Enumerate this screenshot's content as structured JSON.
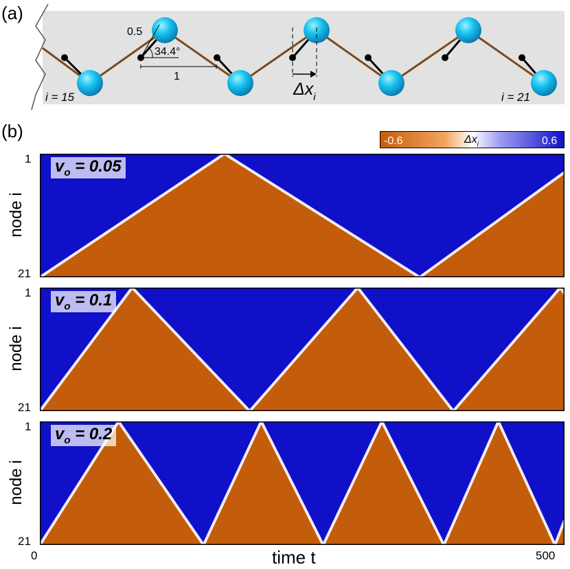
{
  "panel_a": {
    "label": "(a)",
    "dim_short": "0.5",
    "dim_angle": "34.4°",
    "dim_long": "1",
    "delta_main": "Δx",
    "delta_sub": "i",
    "i_left": "i = 15",
    "i_right": "i = 21"
  },
  "panel_b": {
    "label": "(b)",
    "colorbar": {
      "min_label": "-0.6",
      "mid_label": "Δx",
      "mid_sub": "i",
      "max_label": "0.6",
      "colors": [
        "#c45d0b",
        "#ffffff",
        "#1010c8"
      ]
    },
    "ylabel": "node i",
    "xlabel": "time t",
    "x_tick_left": "0",
    "x_tick_right": "500",
    "y_tick_top": "1",
    "y_tick_bottom": "21",
    "rows": [
      {
        "v_main": "v",
        "v_sub": "o",
        "v_value": " = 0.05"
      },
      {
        "v_main": "v",
        "v_sub": "o",
        "v_value": " = 0.1"
      },
      {
        "v_main": "v",
        "v_sub": "o",
        "v_value": " = 0.2"
      }
    ]
  },
  "chart_data": [
    {
      "type": "heatmap",
      "title": "v_o = 0.05",
      "xlabel": "time t",
      "ylabel": "node i",
      "xlim": [
        0,
        500
      ],
      "ylim": [
        1,
        21
      ],
      "value_range": [
        -0.6,
        0.6
      ],
      "front_vertices_time_node": [
        [
          0,
          21
        ],
        [
          176,
          1
        ],
        [
          362,
          21
        ],
        [
          500,
          4
        ]
      ]
    },
    {
      "type": "heatmap",
      "title": "v_o = 0.1",
      "xlabel": "time t",
      "xlim": [
        0,
        500
      ],
      "ylim": [
        1,
        21
      ],
      "value_range": [
        -0.6,
        0.6
      ],
      "front_vertices_time_node": [
        [
          0,
          21
        ],
        [
          88,
          1
        ],
        [
          200,
          21
        ],
        [
          303,
          1
        ],
        [
          394,
          21
        ],
        [
          496,
          1
        ],
        [
          500,
          2
        ]
      ]
    },
    {
      "type": "heatmap",
      "title": "v_o = 0.2",
      "xlabel": "time t",
      "xlim": [
        0,
        500
      ],
      "ylim": [
        1,
        21
      ],
      "value_range": [
        -0.6,
        0.6
      ],
      "front_vertices_time_node": [
        [
          0,
          21
        ],
        [
          75,
          1
        ],
        [
          156,
          21
        ],
        [
          211,
          1
        ],
        [
          270,
          21
        ],
        [
          326,
          1
        ],
        [
          385,
          21
        ],
        [
          437,
          1
        ],
        [
          491,
          21
        ],
        [
          500,
          17
        ]
      ]
    }
  ]
}
